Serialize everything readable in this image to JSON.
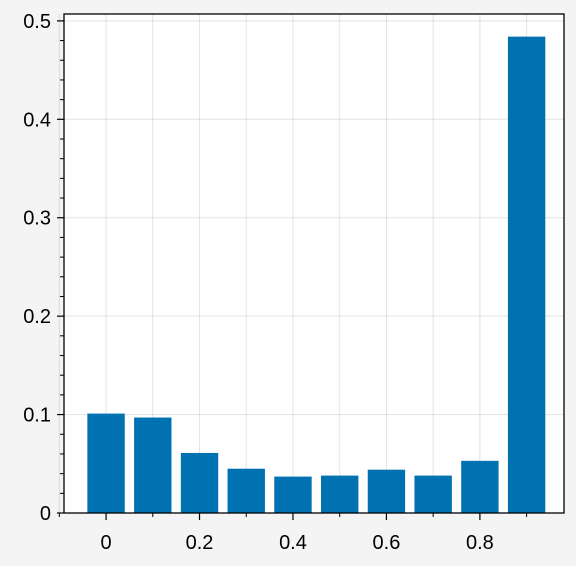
{
  "chart_data": {
    "type": "bar",
    "title": "",
    "xlabel": "",
    "ylabel": "",
    "x": [
      0.0,
      0.1,
      0.2,
      0.3,
      0.4,
      0.5,
      0.6,
      0.7,
      0.8,
      0.9
    ],
    "values": [
      0.101,
      0.097,
      0.061,
      0.045,
      0.037,
      0.038,
      0.044,
      0.038,
      0.053,
      0.484
    ],
    "bar_width": 0.08,
    "xlim": [
      -0.09,
      0.98
    ],
    "ylim": [
      0,
      0.507
    ],
    "xticks": [
      0,
      0.2,
      0.4,
      0.6,
      0.8
    ],
    "xtick_labels": [
      "0",
      "0.2",
      "0.4",
      "0.6",
      "0.8"
    ],
    "x_minor_ticks": [
      -0.1,
      0.1,
      0.3,
      0.5,
      0.7,
      0.9
    ],
    "yticks": [
      0,
      0.1,
      0.2,
      0.3,
      0.4,
      0.5
    ],
    "ytick_labels": [
      "0",
      "0.1",
      "0.2",
      "0.3",
      "0.4",
      "0.5"
    ],
    "grid": true,
    "bar_color": "#0072b2",
    "background_color": "#ffffff"
  }
}
